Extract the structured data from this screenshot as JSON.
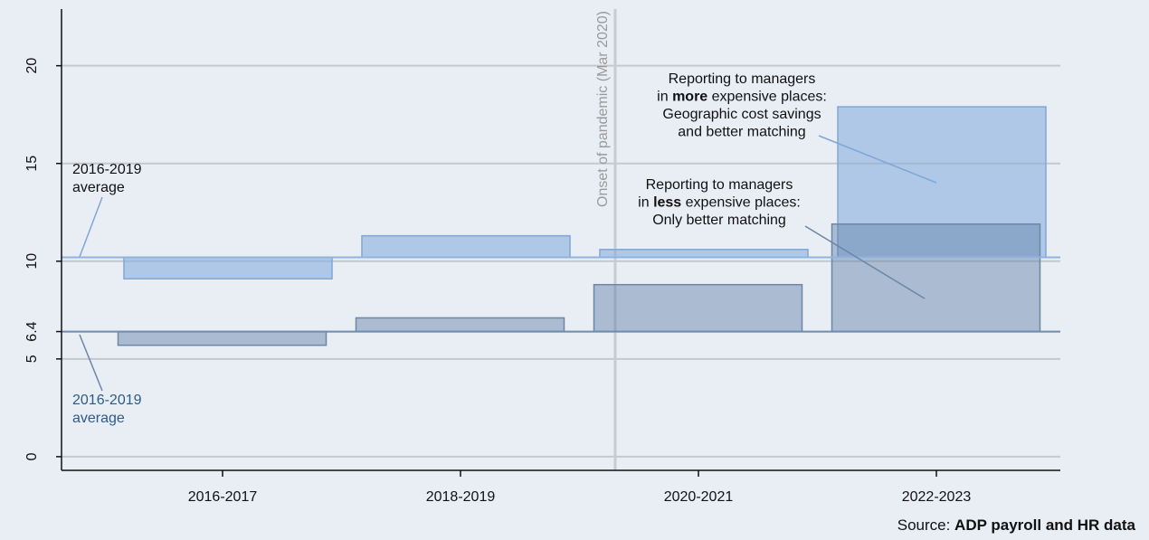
{
  "chart_data": {
    "type": "floating_bar",
    "categories": [
      "2016-2017",
      "2018-2019",
      "2020-2021",
      "2022-2023"
    ],
    "ylim": [
      -0.7,
      22.9
    ],
    "yticks": [
      0,
      5,
      6.4,
      10,
      15,
      20
    ],
    "grid": true,
    "series": [
      {
        "color": "#82aadc",
        "edge": "#7fa7d6",
        "baseline": 10.2,
        "values": [
          9.1,
          11.3,
          10.6,
          17.9
        ],
        "reference_label": [
          "2016-2019",
          "average"
        ],
        "label_color": "#111111"
      },
      {
        "color": "#5f7ea6",
        "edge": "#6a87a8",
        "baseline": 6.4,
        "values": [
          5.7,
          7.1,
          8.8,
          11.9
        ],
        "reference_label": [
          "2016-2019",
          "average"
        ],
        "label_color": "#2e5a8a"
      }
    ],
    "vline": {
      "label": "Onset of pandemic (Mar 2020)"
    },
    "annotations": [
      {
        "lines": [
          [
            {
              "text": "Reporting to managers",
              "bold": false
            }
          ],
          [
            {
              "text": "in ",
              "bold": false
            },
            {
              "text": "more",
              "bold": true
            },
            {
              "text": " expensive places:",
              "bold": false
            }
          ],
          [
            {
              "text": "Geographic cost savings",
              "bold": false
            }
          ],
          [
            {
              "text": "and better matching",
              "bold": false
            }
          ]
        ]
      },
      {
        "lines": [
          [
            {
              "text": "Reporting to managers",
              "bold": false
            }
          ],
          [
            {
              "text": "in ",
              "bold": false
            },
            {
              "text": "less",
              "bold": true
            },
            {
              "text": " expensive places:",
              "bold": false
            }
          ],
          [
            {
              "text": "Only better matching",
              "bold": false
            }
          ]
        ]
      }
    ],
    "source": {
      "prefix": "Source: ",
      "text": "ADP payroll and HR data"
    }
  }
}
